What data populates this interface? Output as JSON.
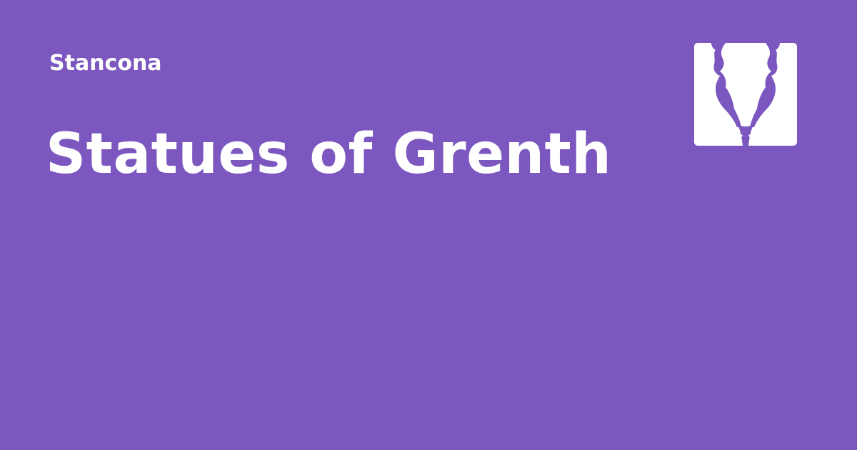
{
  "site": {
    "name": "Stancona"
  },
  "page": {
    "title": "Statues of Grenth"
  },
  "logo": {
    "icon": "dragon-head-icon",
    "background_color": "#ffffff",
    "foreground_color": "#7b57bf"
  },
  "colors": {
    "background": "#7b57bf",
    "text": "#ffffff"
  }
}
